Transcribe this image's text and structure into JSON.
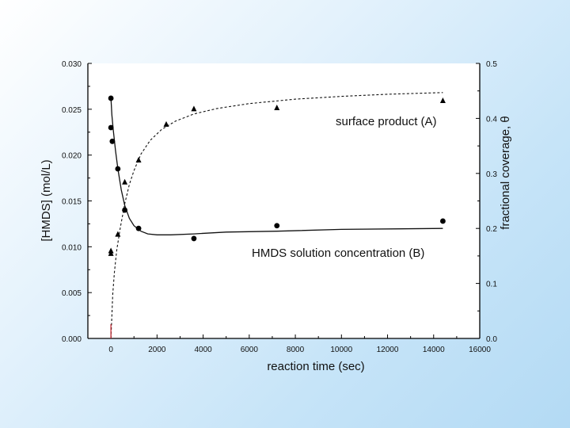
{
  "chart_data": {
    "type": "scatter",
    "xlabel": "reaction time (sec)",
    "ylabel_left": "[HMDS]  (mol/L)",
    "ylabel_right": "fractional coverage, θ",
    "xlim": [
      -1000,
      16000
    ],
    "ylim_left": [
      0.0,
      0.03
    ],
    "ylim_right": [
      0.0,
      0.5
    ],
    "x_ticks": [
      "0",
      "2000",
      "4000",
      "6000",
      "8000",
      "10000",
      "12000",
      "14000",
      "16000"
    ],
    "y_left_ticks": [
      "0.000",
      "0.005",
      "0.010",
      "0.015",
      "0.020",
      "0.025",
      "0.030"
    ],
    "y_right_ticks": [
      "0.0",
      "0.1",
      "0.2",
      "0.3",
      "0.4",
      "0.5"
    ],
    "grid": false,
    "series": [
      {
        "name": "HMDS solution concentration (B)",
        "axis": "left",
        "marker": "circle",
        "line": "solid",
        "x": [
          0,
          0,
          60,
          300,
          600,
          1200,
          3600,
          7200,
          14400
        ],
        "y": [
          0.0262,
          0.023,
          0.0215,
          0.0185,
          0.014,
          0.012,
          0.0109,
          0.0123,
          0.0128
        ],
        "fit_x": [
          0,
          40,
          100,
          200,
          300,
          450,
          600,
          800,
          1000,
          1300,
          1600,
          2000,
          2600,
          3600,
          5000,
          7200,
          10000,
          14400
        ],
        "fit_y": [
          0.0263,
          0.0244,
          0.0228,
          0.0205,
          0.0185,
          0.0162,
          0.0145,
          0.0131,
          0.0123,
          0.0117,
          0.0114,
          0.0113,
          0.0113,
          0.0114,
          0.0116,
          0.0117,
          0.0119,
          0.012
        ]
      },
      {
        "name": "surface product (A)",
        "axis": "right",
        "marker": "triangle",
        "line": "dashed",
        "x": [
          0,
          0,
          300,
          600,
          1200,
          2400,
          3600,
          7200,
          14400
        ],
        "y": [
          0.16,
          0.155,
          0.19,
          0.285,
          0.325,
          0.39,
          0.418,
          0.42,
          0.433
        ],
        "fit_x": [
          0,
          30,
          80,
          150,
          250,
          400,
          600,
          800,
          1000,
          1300,
          1700,
          2200,
          2800,
          3600,
          4600,
          6000,
          8000,
          10000,
          12000,
          14400
        ],
        "fit_y": [
          0.0,
          0.03,
          0.08,
          0.12,
          0.16,
          0.2,
          0.245,
          0.28,
          0.305,
          0.335,
          0.36,
          0.38,
          0.395,
          0.408,
          0.418,
          0.427,
          0.435,
          0.44,
          0.444,
          0.447
        ]
      }
    ],
    "annotations": [
      {
        "text": "surface product (A)",
        "target": "series.1"
      },
      {
        "text": "HMDS solution concentration (B)",
        "target": "series.0"
      }
    ],
    "colors": {
      "left_axis": "#000000",
      "right_axis": "#000000",
      "x_axis": "#000000",
      "zero_drop_line": "#c0202a",
      "markers": "#000000"
    }
  }
}
